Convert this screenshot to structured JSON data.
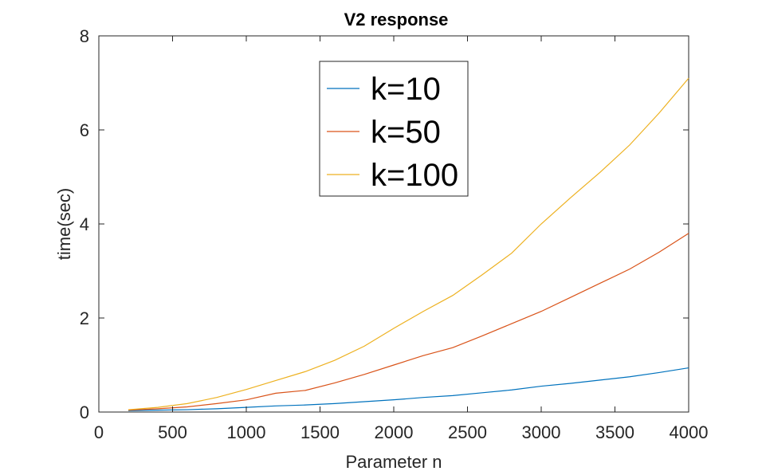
{
  "chart_data": {
    "type": "line",
    "title": "V2 response",
    "xlabel": "Parameter n",
    "ylabel": "time(sec)",
    "xlim": [
      0,
      4000
    ],
    "ylim": [
      0,
      8
    ],
    "xticks": [
      0,
      500,
      1000,
      1500,
      2000,
      2500,
      3000,
      3500,
      4000
    ],
    "yticks": [
      0,
      2,
      4,
      6,
      8
    ],
    "grid": false,
    "legend_position": "top-center",
    "x": [
      200,
      400,
      600,
      800,
      1000,
      1200,
      1400,
      1600,
      1800,
      2000,
      2200,
      2400,
      2600,
      2800,
      3000,
      3200,
      3400,
      3600,
      3800,
      4000
    ],
    "series": [
      {
        "name": "k=10",
        "color": "#0072BD",
        "values": [
          0.03,
          0.04,
          0.05,
          0.07,
          0.1,
          0.13,
          0.15,
          0.18,
          0.22,
          0.26,
          0.31,
          0.35,
          0.41,
          0.47,
          0.55,
          0.61,
          0.68,
          0.75,
          0.84,
          0.94
        ]
      },
      {
        "name": "k=50",
        "color": "#D95319",
        "values": [
          0.04,
          0.07,
          0.11,
          0.18,
          0.26,
          0.4,
          0.46,
          0.62,
          0.8,
          1.0,
          1.2,
          1.37,
          1.62,
          1.88,
          2.14,
          2.44,
          2.74,
          3.04,
          3.4,
          3.8
        ]
      },
      {
        "name": "k=100",
        "color": "#EDB120",
        "values": [
          0.05,
          0.1,
          0.18,
          0.31,
          0.48,
          0.67,
          0.86,
          1.1,
          1.4,
          1.78,
          2.14,
          2.48,
          2.92,
          3.38,
          4.0,
          4.56,
          5.1,
          5.68,
          6.36,
          7.1
        ]
      }
    ]
  }
}
